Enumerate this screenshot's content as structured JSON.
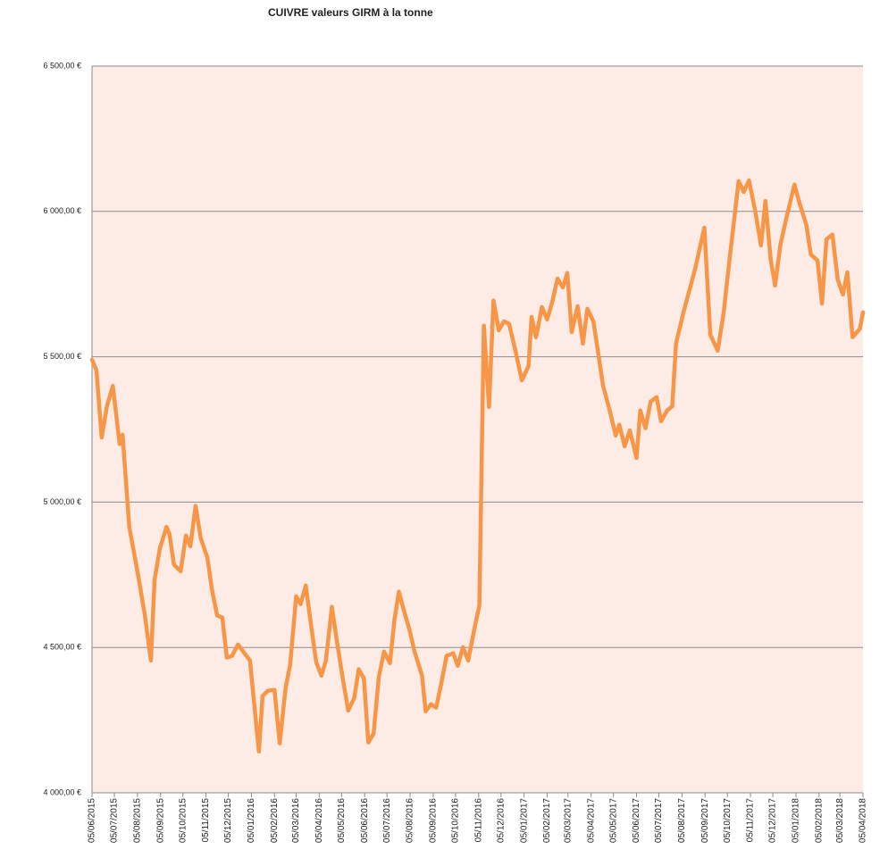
{
  "chart_data": {
    "type": "line",
    "title": "CUIVRE valeurs GIRM à la tonne",
    "color": "#f79646",
    "background": "#fdece6",
    "grid": true,
    "x": [
      "05/06/2015",
      "11/06/2015",
      "18/06/2015",
      "25/06/2015",
      "03/07/2015",
      "12/07/2015",
      "16/07/2015",
      "25/07/2015",
      "06/08/2015",
      "15/08/2015",
      "23/08/2015",
      "28/08/2015",
      "04/09/2015",
      "13/09/2015",
      "17/09/2015",
      "23/09/2015",
      "02/10/2015",
      "09/10/2015",
      "15/10/2015",
      "22/10/2015",
      "29/10/2015",
      "07/11/2015",
      "13/11/2015",
      "20/11/2015",
      "27/11/2015",
      "03/12/2015",
      "10/12/2015",
      "18/12/2015",
      "25/12/2015",
      "03/01/2016",
      "15/01/2016",
      "20/01/2016",
      "27/01/2016",
      "05/02/2016",
      "12/02/2016",
      "20/02/2016",
      "26/02/2016",
      "05/03/2016",
      "11/03/2016",
      "18/03/2016",
      "25/03/2016",
      "01/04/2016",
      "08/04/2016",
      "14/04/2016",
      "22/04/2016",
      "29/04/2016",
      "07/05/2016",
      "14/05/2016",
      "22/05/2016",
      "28/05/2016",
      "04/06/2016",
      "10/06/2016",
      "17/06/2016",
      "24/06/2016",
      "01/07/2016",
      "09/07/2016",
      "15/07/2016",
      "21/07/2016",
      "28/07/2016",
      "04/08/2016",
      "11/08/2016",
      "21/08/2016",
      "26/08/2016",
      "02/09/2016",
      "09/09/2016",
      "16/09/2016",
      "23/09/2016",
      "02/10/2016",
      "08/10/2016",
      "15/10/2016",
      "22/10/2016",
      "29/10/2016",
      "06/11/2016",
      "12/11/2016",
      "19/11/2016",
      "25/11/2016",
      "02/12/2016",
      "09/12/2016",
      "16/12/2016",
      "25/12/2016",
      "02/01/2017",
      "11/01/2017",
      "15/01/2017",
      "21/01/2017",
      "29/01/2017",
      "05/02/2017",
      "12/02/2017",
      "19/02/2017",
      "26/02/2017",
      "04/03/2017",
      "10/03/2017",
      "18/03/2017",
      "25/03/2017",
      "31/03/2017",
      "08/04/2017",
      "15/04/2017",
      "21/04/2017",
      "30/04/2017",
      "08/05/2017",
      "13/05/2017",
      "20/05/2017",
      "27/05/2017",
      "05/06/2017",
      "10/06/2017",
      "17/06/2017",
      "24/06/2017",
      "02/07/2017",
      "08/07/2017",
      "16/07/2017",
      "23/07/2017",
      "28/07/2017",
      "07/08/2017",
      "23/08/2017",
      "04/09/2017",
      "12/09/2017",
      "22/09/2017",
      "30/09/2017",
      "08/10/2017",
      "20/10/2017",
      "27/10/2017",
      "03/11/2017",
      "11/11/2017",
      "19/11/2017",
      "25/11/2017",
      "02/12/2017",
      "08/12/2017",
      "15/12/2017",
      "23/12/2017",
      "03/01/2018",
      "10/01/2018",
      "19/01/2018",
      "25/01/2018",
      "03/02/2018",
      "09/02/2018",
      "15/02/2018",
      "23/02/2018",
      "02/03/2018",
      "09/03/2018",
      "15/03/2018",
      "22/03/2018",
      "01/04/2018",
      "05/04/2018"
    ],
    "values": [
      5490,
      5453,
      5222,
      5330,
      5400,
      5200,
      5232,
      4915,
      4747,
      4610,
      4455,
      4732,
      4840,
      4915,
      4890,
      4785,
      4762,
      4885,
      4848,
      4987,
      4876,
      4808,
      4700,
      4610,
      4603,
      4465,
      4471,
      4510,
      4486,
      4455,
      4142,
      4333,
      4351,
      4354,
      4170,
      4363,
      4440,
      4676,
      4649,
      4713,
      4578,
      4449,
      4403,
      4455,
      4640,
      4517,
      4388,
      4283,
      4326,
      4425,
      4394,
      4173,
      4204,
      4397,
      4486,
      4446,
      4594,
      4692,
      4624,
      4563,
      4486,
      4403,
      4280,
      4305,
      4293,
      4378,
      4471,
      4480,
      4437,
      4501,
      4455,
      4547,
      4646,
      5607,
      5327,
      5693,
      5591,
      5622,
      5613,
      5515,
      5419,
      5468,
      5637,
      5567,
      5671,
      5628,
      5690,
      5769,
      5739,
      5788,
      5585,
      5674,
      5545,
      5665,
      5622,
      5505,
      5401,
      5315,
      5229,
      5266,
      5192,
      5247,
      5152,
      5315,
      5254,
      5346,
      5361,
      5278,
      5315,
      5330,
      5545,
      5653,
      5806,
      5944,
      5576,
      5521,
      5653,
      5837,
      6104,
      6067,
      6107,
      6006,
      5883,
      6036,
      5837,
      5745,
      5883,
      5975,
      6092,
      6027,
      5954,
      5852,
      5831,
      5683,
      5904,
      5920,
      5766,
      5714,
      5791,
      5567,
      5597,
      5653
    ],
    "xlim": [
      "05/06/2015",
      "05/04/2018"
    ],
    "xticks": [
      "05/06/2015",
      "05/07/2015",
      "05/08/2015",
      "05/09/2015",
      "05/10/2015",
      "05/11/2015",
      "05/12/2015",
      "05/01/2016",
      "05/02/2016",
      "05/03/2016",
      "05/04/2016",
      "05/05/2016",
      "05/06/2016",
      "05/07/2016",
      "05/08/2016",
      "05/09/2016",
      "05/10/2016",
      "05/11/2016",
      "05/12/2016",
      "05/01/2017",
      "05/02/2017",
      "05/03/2017",
      "05/04/2017",
      "05/05/2017",
      "05/06/2017",
      "05/07/2017",
      "05/08/2017",
      "05/09/2017",
      "05/10/2017",
      "05/11/2017",
      "05/12/2017",
      "05/01/2018",
      "05/02/2018",
      "05/03/2018",
      "05/04/2018"
    ],
    "ylim": [
      4000,
      6500
    ],
    "yticks": [
      {
        "value": 4000,
        "label": "4 000,00 €"
      },
      {
        "value": 4500,
        "label": "4 500,00 €"
      },
      {
        "value": 5000,
        "label": "5 000,00 €"
      },
      {
        "value": 5500,
        "label": "5 500,00 €"
      },
      {
        "value": 6000,
        "label": "6 000,00 €"
      },
      {
        "value": 6500,
        "label": "6 500,00 €"
      }
    ]
  }
}
